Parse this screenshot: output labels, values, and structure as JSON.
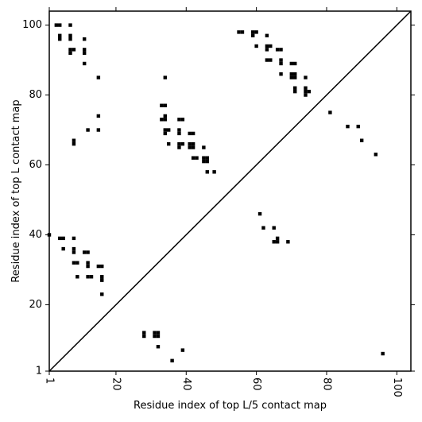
{
  "chart_data": {
    "type": "heatmap",
    "title": "",
    "xlabel": "Residue index of top L/5 contact map",
    "ylabel": "Residue index of top L contact map",
    "xlim": [
      1,
      104
    ],
    "ylim": [
      1,
      104
    ],
    "x_ticks": [
      1,
      20,
      40,
      60,
      80,
      100
    ],
    "y_ticks": [
      1,
      20,
      40,
      60,
      80,
      100
    ],
    "x_tick_labels": [
      "1",
      "20",
      "40",
      "60",
      "80",
      "100"
    ],
    "y_tick_labels": [
      "1",
      "20",
      "40",
      "60",
      "80",
      "100"
    ],
    "x_tick_rotation": "vertical",
    "grid": false,
    "diagonal_line": true,
    "cell_color": "#000000",
    "upper_triangle_points": [
      [
        3,
        100
      ],
      [
        4,
        100
      ],
      [
        7,
        100
      ],
      [
        4,
        97
      ],
      [
        4,
        96
      ],
      [
        7,
        97
      ],
      [
        7,
        96
      ],
      [
        7,
        93
      ],
      [
        7,
        92
      ],
      [
        8,
        93
      ],
      [
        11,
        96
      ],
      [
        11,
        93
      ],
      [
        11,
        92
      ],
      [
        11,
        89
      ],
      [
        15,
        85
      ],
      [
        8,
        67
      ],
      [
        8,
        66
      ],
      [
        15,
        74
      ],
      [
        12,
        70
      ],
      [
        15,
        70
      ],
      [
        34,
        85
      ],
      [
        33,
        77
      ],
      [
        34,
        77
      ],
      [
        33,
        73
      ],
      [
        34,
        73
      ],
      [
        34,
        74
      ],
      [
        38,
        73
      ],
      [
        39,
        73
      ],
      [
        34,
        70
      ],
      [
        35,
        70
      ],
      [
        34,
        69
      ],
      [
        38,
        70
      ],
      [
        38,
        69
      ],
      [
        35,
        66
      ],
      [
        38,
        66
      ],
      [
        38,
        65
      ],
      [
        39,
        66
      ],
      [
        41,
        69
      ],
      [
        42,
        69
      ],
      [
        41,
        66
      ],
      [
        42,
        66
      ],
      [
        41,
        65
      ],
      [
        42,
        65
      ],
      [
        45,
        65
      ],
      [
        42,
        62
      ],
      [
        43,
        62
      ],
      [
        45,
        62
      ],
      [
        46,
        62
      ],
      [
        45,
        61
      ],
      [
        46,
        61
      ],
      [
        46,
        58
      ],
      [
        48,
        58
      ],
      [
        55,
        98
      ],
      [
        56,
        98
      ],
      [
        59,
        98
      ],
      [
        60,
        98
      ],
      [
        59,
        97
      ],
      [
        63,
        97
      ],
      [
        60,
        94
      ],
      [
        63,
        94
      ],
      [
        64,
        94
      ],
      [
        63,
        93
      ],
      [
        66,
        93
      ],
      [
        67,
        93
      ],
      [
        63,
        90
      ],
      [
        64,
        90
      ],
      [
        67,
        90
      ],
      [
        67,
        89
      ],
      [
        70,
        89
      ],
      [
        71,
        89
      ],
      [
        67,
        86
      ],
      [
        70,
        86
      ],
      [
        71,
        86
      ],
      [
        70,
        85
      ],
      [
        71,
        85
      ],
      [
        74,
        85
      ],
      [
        71,
        82
      ],
      [
        71,
        81
      ],
      [
        74,
        82
      ],
      [
        74,
        81
      ],
      [
        74,
        80
      ],
      [
        75,
        81
      ],
      [
        81,
        75
      ],
      [
        86,
        71
      ],
      [
        89,
        71
      ],
      [
        90,
        67
      ],
      [
        94,
        63
      ]
    ],
    "lower_triangle_points": [
      [
        1,
        40
      ],
      [
        4,
        39
      ],
      [
        5,
        39
      ],
      [
        8,
        39
      ],
      [
        5,
        36
      ],
      [
        8,
        36
      ],
      [
        8,
        35
      ],
      [
        11,
        35
      ],
      [
        12,
        35
      ],
      [
        8,
        32
      ],
      [
        9,
        32
      ],
      [
        12,
        32
      ],
      [
        12,
        31
      ],
      [
        15,
        31
      ],
      [
        16,
        31
      ],
      [
        9,
        28
      ],
      [
        12,
        28
      ],
      [
        13,
        28
      ],
      [
        16,
        28
      ],
      [
        16,
        27
      ],
      [
        16,
        23
      ],
      [
        61,
        46
      ],
      [
        62,
        42
      ],
      [
        65,
        42
      ],
      [
        66,
        39
      ],
      [
        65,
        38
      ],
      [
        66,
        38
      ],
      [
        69,
        38
      ],
      [
        28,
        12
      ],
      [
        28,
        11
      ],
      [
        31,
        12
      ],
      [
        32,
        12
      ],
      [
        31,
        11
      ],
      [
        32,
        11
      ],
      [
        32,
        8
      ],
      [
        39,
        7
      ],
      [
        36,
        4
      ],
      [
        96,
        6
      ]
    ]
  }
}
